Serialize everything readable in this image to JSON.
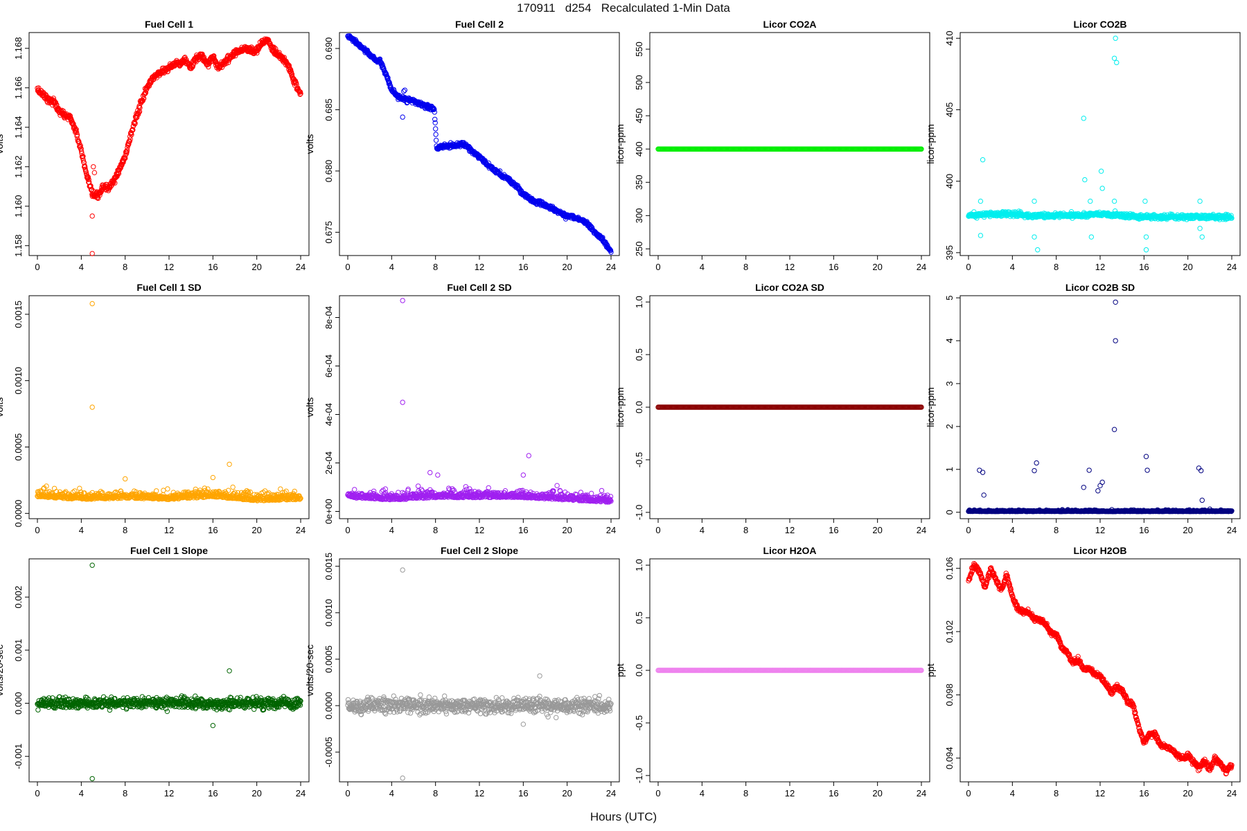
{
  "figure": {
    "title": "170911   d254   Recalculated 1-Min Data",
    "xlabel": "Hours (UTC)"
  },
  "chart_data": [
    {
      "type": "scatter",
      "title": "Fuel Cell 1",
      "ylabel": "volts",
      "color": "#ff0000",
      "xlim": [
        0,
        24
      ],
      "xticks": [
        "0",
        "4",
        "8",
        "12",
        "16",
        "20",
        "24"
      ],
      "ylim": [
        1.1575,
        1.1688
      ],
      "yticks": [
        {
          "v": 1.158,
          "label": "1.158"
        },
        {
          "v": 1.16,
          "label": "1.160"
        },
        {
          "v": 1.162,
          "label": "1.162"
        },
        {
          "v": 1.164,
          "label": "1.164"
        },
        {
          "v": 1.166,
          "label": "1.166"
        },
        {
          "v": 1.168,
          "label": "1.168"
        }
      ],
      "x": [
        0,
        0.5,
        1,
        1.5,
        2,
        2.5,
        3,
        3.5,
        4,
        4.5,
        5,
        5.5,
        6,
        6.5,
        7,
        7.5,
        8,
        8.5,
        9,
        9.5,
        10,
        10.5,
        11,
        11.5,
        12,
        12.5,
        13,
        13.5,
        14,
        14.5,
        15,
        15.5,
        16,
        16.5,
        17,
        17.5,
        18,
        18.5,
        19,
        19.5,
        20,
        20.5,
        21,
        21.5,
        22,
        22.5,
        23,
        23.5,
        24
      ],
      "y": [
        1.1659,
        1.1657,
        1.1654,
        1.1653,
        1.1648,
        1.1646,
        1.1645,
        1.1638,
        1.1628,
        1.1615,
        1.1606,
        1.1605,
        1.161,
        1.1609,
        1.1613,
        1.1619,
        1.1625,
        1.1636,
        1.1645,
        1.1653,
        1.166,
        1.1665,
        1.1667,
        1.1669,
        1.167,
        1.1672,
        1.1673,
        1.1674,
        1.167,
        1.1675,
        1.1676,
        1.1672,
        1.1676,
        1.167,
        1.1673,
        1.1675,
        1.1678,
        1.1679,
        1.168,
        1.1679,
        1.1679,
        1.1683,
        1.1684,
        1.1679,
        1.1676,
        1.1674,
        1.167,
        1.1662,
        1.1657
      ],
      "outliers": [
        {
          "x": 5,
          "y": 1.1576
        },
        {
          "x": 5,
          "y": 1.1595
        },
        {
          "x": 5.1,
          "y": 1.162
        },
        {
          "x": 5.2,
          "y": 1.1617
        }
      ]
    },
    {
      "type": "scatter",
      "title": "Fuel Cell 2",
      "ylabel": "volts",
      "color": "#0000ee",
      "xlim": [
        0,
        24
      ],
      "xticks": [
        "0",
        "4",
        "8",
        "12",
        "16",
        "20",
        "24"
      ],
      "ylim": [
        0.6731,
        0.6913
      ],
      "yticks": [
        {
          "v": 0.675,
          "label": "0.675"
        },
        {
          "v": 0.68,
          "label": "0.680"
        },
        {
          "v": 0.685,
          "label": "0.685"
        },
        {
          "v": 0.69,
          "label": "0.690"
        }
      ],
      "x": [
        0,
        0.5,
        1,
        1.5,
        2,
        2.5,
        3,
        3.5,
        4,
        4.5,
        5,
        5.5,
        6,
        6.5,
        7,
        7.5,
        7.9,
        8.1,
        8.5,
        9,
        9.5,
        10,
        10.5,
        11,
        11.5,
        12,
        12.5,
        13,
        13.5,
        14,
        14.5,
        15,
        15.5,
        16,
        16.5,
        17,
        17.5,
        18,
        18.5,
        19,
        19.5,
        20,
        20.5,
        21,
        21.5,
        22,
        22.5,
        23,
        23.5,
        24
      ],
      "y": [
        0.691,
        0.6907,
        0.6903,
        0.6899,
        0.6895,
        0.6891,
        0.6889,
        0.6878,
        0.6866,
        0.6861,
        0.6859,
        0.6858,
        0.6857,
        0.6855,
        0.6853,
        0.6852,
        0.685,
        0.6818,
        0.682,
        0.682,
        0.6821,
        0.6821,
        0.6822,
        0.6819,
        0.6815,
        0.6811,
        0.6807,
        0.6803,
        0.68,
        0.6796,
        0.6795,
        0.679,
        0.6787,
        0.6781,
        0.6778,
        0.6775,
        0.6774,
        0.6772,
        0.677,
        0.6768,
        0.6765,
        0.6763,
        0.6763,
        0.6761,
        0.6759,
        0.6756,
        0.675,
        0.6746,
        0.6741,
        0.6734
      ],
      "outliers": [
        {
          "x": 5.0,
          "y": 0.6844
        },
        {
          "x": 5.1,
          "y": 0.6865
        },
        {
          "x": 5.2,
          "y": 0.6866
        }
      ]
    },
    {
      "type": "scatter",
      "title": "Licor CO2A",
      "ylabel": "licor-ppm",
      "color": "#00ee00",
      "xlim": [
        0,
        24
      ],
      "xticks": [
        "0",
        "4",
        "8",
        "12",
        "16",
        "20",
        "24"
      ],
      "ylim": [
        240,
        575
      ],
      "yticks": [
        {
          "v": 250,
          "label": "250"
        },
        {
          "v": 300,
          "label": "300"
        },
        {
          "v": 350,
          "label": "350"
        },
        {
          "v": 400,
          "label": "400"
        },
        {
          "v": 450,
          "label": "450"
        },
        {
          "v": 500,
          "label": "500"
        },
        {
          "v": 550,
          "label": "550"
        }
      ],
      "x": [
        0,
        24
      ],
      "y": [
        400,
        400
      ],
      "outliers": []
    },
    {
      "type": "scatter",
      "title": "Licor CO2B",
      "ylabel": "licor-ppm",
      "color": "#00eeee",
      "xlim": [
        0,
        24
      ],
      "xticks": [
        "0",
        "4",
        "8",
        "12",
        "16",
        "20",
        "24"
      ],
      "ylim": [
        394.8,
        410.4
      ],
      "yticks": [
        {
          "v": 395,
          "label": "395"
        },
        {
          "v": 400,
          "label": "400"
        },
        {
          "v": 405,
          "label": "405"
        },
        {
          "v": 410,
          "label": "410"
        }
      ],
      "x": [
        0,
        2,
        4,
        6,
        8,
        10,
        12,
        14,
        16,
        18,
        20,
        22,
        24
      ],
      "y": [
        397.6,
        397.7,
        397.7,
        397.6,
        397.6,
        397.6,
        397.7,
        397.6,
        397.5,
        397.5,
        397.5,
        397.5,
        397.5
      ],
      "outliers": [
        {
          "x": 1.3,
          "y": 401.5
        },
        {
          "x": 1.1,
          "y": 398.6
        },
        {
          "x": 1.1,
          "y": 396.2
        },
        {
          "x": 6,
          "y": 398.6
        },
        {
          "x": 6,
          "y": 396.1
        },
        {
          "x": 6.3,
          "y": 395.2
        },
        {
          "x": 10.5,
          "y": 404.4
        },
        {
          "x": 10.6,
          "y": 400.1
        },
        {
          "x": 11.1,
          "y": 398.6
        },
        {
          "x": 11.2,
          "y": 396.1
        },
        {
          "x": 12.1,
          "y": 400.7
        },
        {
          "x": 12.2,
          "y": 399.5
        },
        {
          "x": 13.3,
          "y": 408.6
        },
        {
          "x": 13.4,
          "y": 410.0
        },
        {
          "x": 13.5,
          "y": 408.3
        },
        {
          "x": 13.3,
          "y": 398.6
        },
        {
          "x": 16.1,
          "y": 398.6
        },
        {
          "x": 16.2,
          "y": 396.1
        },
        {
          "x": 16.2,
          "y": 395.2
        },
        {
          "x": 21.1,
          "y": 398.6
        },
        {
          "x": 21.1,
          "y": 396.7
        },
        {
          "x": 21.3,
          "y": 396.1
        }
      ]
    },
    {
      "type": "scatter",
      "title": "Fuel Cell 1 SD",
      "ylabel": "volts",
      "color": "#ffa500",
      "xlim": [
        0,
        24
      ],
      "xticks": [
        "0",
        "4",
        "8",
        "12",
        "16",
        "20",
        "24"
      ],
      "ylim": [
        -4e-05,
        0.00164
      ],
      "yticks": [
        {
          "v": 0.0,
          "label": "0.0000"
        },
        {
          "v": 0.0005,
          "label": "0.0005"
        },
        {
          "v": 0.001,
          "label": "0.0010"
        },
        {
          "v": 0.0015,
          "label": "0.0015"
        }
      ],
      "x": [
        0,
        4,
        8,
        12,
        16,
        20,
        24
      ],
      "y": [
        0.00013,
        0.00011,
        0.00012,
        0.00011,
        0.00013,
        0.0001,
        0.00011
      ],
      "outliers": [
        {
          "x": 5,
          "y": 0.00158
        },
        {
          "x": 5,
          "y": 0.0008
        },
        {
          "x": 8,
          "y": 0.00026
        },
        {
          "x": 16,
          "y": 0.00027
        },
        {
          "x": 17.5,
          "y": 0.00037
        }
      ]
    },
    {
      "type": "scatter",
      "title": "Fuel Cell 2 SD",
      "ylabel": "volts",
      "color": "#a020f0",
      "xlim": [
        0,
        24
      ],
      "xticks": [
        "0",
        "4",
        "8",
        "12",
        "16",
        "20",
        "24"
      ],
      "ylim": [
        -3e-05,
        0.00089
      ],
      "yticks": [
        {
          "v": 0.0,
          "label": "0e+00"
        },
        {
          "v": 0.0002,
          "label": "2e-04"
        },
        {
          "v": 0.0004,
          "label": "4e-04"
        },
        {
          "v": 0.0006,
          "label": "6e-04"
        },
        {
          "v": 0.0008,
          "label": "8e-04"
        }
      ],
      "x": [
        0,
        4,
        8,
        12,
        16,
        20,
        24
      ],
      "y": [
        6e-05,
        5e-05,
        6e-05,
        6e-05,
        6e-05,
        5e-05,
        4e-05
      ],
      "outliers": [
        {
          "x": 5,
          "y": 0.00087
        },
        {
          "x": 5,
          "y": 0.00045
        },
        {
          "x": 7.5,
          "y": 0.00016
        },
        {
          "x": 8.2,
          "y": 0.00015
        },
        {
          "x": 16.5,
          "y": 0.00023
        },
        {
          "x": 16,
          "y": 0.00015
        }
      ]
    },
    {
      "type": "scatter",
      "title": "Licor CO2A SD",
      "ylabel": "licor-ppm",
      "color": "#8b0000",
      "xlim": [
        0,
        24
      ],
      "xticks": [
        "0",
        "4",
        "8",
        "12",
        "16",
        "20",
        "24"
      ],
      "ylim": [
        -1.06,
        1.06
      ],
      "yticks": [
        {
          "v": -1.0,
          "label": "-1.0"
        },
        {
          "v": -0.5,
          "label": "-0.5"
        },
        {
          "v": 0.0,
          "label": "0.0"
        },
        {
          "v": 0.5,
          "label": "0.5"
        },
        {
          "v": 1.0,
          "label": "1.0"
        }
      ],
      "x": [
        0,
        24
      ],
      "y": [
        0,
        0
      ],
      "outliers": []
    },
    {
      "type": "scatter",
      "title": "Licor CO2B SD",
      "ylabel": "licor-ppm",
      "color": "#000080",
      "xlim": [
        0,
        24
      ],
      "xticks": [
        "0",
        "4",
        "8",
        "12",
        "16",
        "20",
        "24"
      ],
      "ylim": [
        -0.15,
        5.05
      ],
      "yticks": [
        {
          "v": 0,
          "label": "0"
        },
        {
          "v": 1,
          "label": "1"
        },
        {
          "v": 2,
          "label": "2"
        },
        {
          "v": 3,
          "label": "3"
        },
        {
          "v": 4,
          "label": "4"
        },
        {
          "v": 5,
          "label": "5"
        }
      ],
      "x": [
        0,
        24
      ],
      "y": [
        0.02,
        0.02
      ],
      "outliers": [
        {
          "x": 13.4,
          "y": 4.9
        },
        {
          "x": 13.4,
          "y": 4.0
        },
        {
          "x": 13.3,
          "y": 1.93
        },
        {
          "x": 16.2,
          "y": 1.3
        },
        {
          "x": 6.2,
          "y": 1.15
        },
        {
          "x": 1,
          "y": 0.98
        },
        {
          "x": 1.3,
          "y": 0.93
        },
        {
          "x": 6,
          "y": 0.97
        },
        {
          "x": 11,
          "y": 0.98
        },
        {
          "x": 21,
          "y": 1.03
        },
        {
          "x": 21.2,
          "y": 0.97
        },
        {
          "x": 10.5,
          "y": 0.58
        },
        {
          "x": 12,
          "y": 0.62
        },
        {
          "x": 12.2,
          "y": 0.7
        },
        {
          "x": 11.8,
          "y": 0.5
        },
        {
          "x": 1.4,
          "y": 0.4
        },
        {
          "x": 16.3,
          "y": 0.98
        },
        {
          "x": 21.3,
          "y": 0.28
        }
      ]
    },
    {
      "type": "scatter",
      "title": "Fuel Cell 1 Slope",
      "ylabel": "volts/20-sec",
      "color": "#006400",
      "xlim": [
        0,
        24
      ],
      "xticks": [
        "0",
        "4",
        "8",
        "12",
        "16",
        "20",
        "24"
      ],
      "ylim": [
        -0.00148,
        0.00272
      ],
      "yticks": [
        {
          "v": -0.001,
          "label": "-0.001"
        },
        {
          "v": 0.0,
          "label": "0.000"
        },
        {
          "v": 0.001,
          "label": "0.001"
        },
        {
          "v": 0.002,
          "label": "0.002"
        }
      ],
      "x": [
        0,
        24
      ],
      "y": [
        0,
        0
      ],
      "outliers": [
        {
          "x": 5,
          "y": 0.0026
        },
        {
          "x": 5,
          "y": -0.00142
        },
        {
          "x": 17.5,
          "y": 0.00061
        },
        {
          "x": 16,
          "y": -0.00042
        }
      ]
    },
    {
      "type": "scatter",
      "title": "Fuel Cell 2 Slope",
      "ylabel": "volts/20-sec",
      "color": "#999999",
      "xlim": [
        0,
        24
      ],
      "xticks": [
        "0",
        "4",
        "8",
        "12",
        "16",
        "20",
        "24"
      ],
      "ylim": [
        -0.00082,
        0.00158
      ],
      "yticks": [
        {
          "v": -0.0005,
          "label": "-0.0005"
        },
        {
          "v": 0.0,
          "label": "0.0000"
        },
        {
          "v": 0.0005,
          "label": "0.0005"
        },
        {
          "v": 0.001,
          "label": "0.0010"
        },
        {
          "v": 0.0015,
          "label": "0.0015"
        }
      ],
      "x": [
        0,
        24
      ],
      "y": [
        0,
        0
      ],
      "outliers": [
        {
          "x": 5,
          "y": 0.00146
        },
        {
          "x": 5,
          "y": -0.00078
        },
        {
          "x": 17.5,
          "y": 0.00032
        },
        {
          "x": 16,
          "y": -0.0002
        }
      ]
    },
    {
      "type": "scatter",
      "title": "Licor H2OA",
      "ylabel": "ppt",
      "color": "#ee82ee",
      "xlim": [
        0,
        24
      ],
      "xticks": [
        "0",
        "4",
        "8",
        "12",
        "16",
        "20",
        "24"
      ],
      "ylim": [
        -1.06,
        1.06
      ],
      "yticks": [
        {
          "v": -1.0,
          "label": "-1.0"
        },
        {
          "v": -0.5,
          "label": "-0.5"
        },
        {
          "v": 0.0,
          "label": "0.0"
        },
        {
          "v": 0.5,
          "label": "0.5"
        },
        {
          "v": 1.0,
          "label": "1.0"
        }
      ],
      "x": [
        0,
        24
      ],
      "y": [
        0,
        0
      ],
      "outliers": []
    },
    {
      "type": "scatter",
      "title": "Licor H2OB",
      "ylabel": "ppt",
      "color": "#ff0000",
      "xlim": [
        0,
        24
      ],
      "xticks": [
        "0",
        "4",
        "8",
        "12",
        "16",
        "20",
        "24"
      ],
      "ylim": [
        0.0925,
        0.1066
      ],
      "yticks": [
        {
          "v": 0.094,
          "label": "0.094"
        },
        {
          "v": 0.098,
          "label": "0.098"
        },
        {
          "v": 0.102,
          "label": "0.102"
        },
        {
          "v": 0.106,
          "label": "0.106"
        }
      ],
      "x": [
        0,
        0.5,
        1,
        1.5,
        2,
        2.5,
        3,
        3.5,
        4,
        4.5,
        5,
        5.5,
        6,
        6.5,
        7,
        7.5,
        8,
        8.5,
        9,
        9.5,
        10,
        10.5,
        11,
        11.5,
        12,
        12.5,
        13,
        13.5,
        14,
        14.5,
        15,
        15.5,
        16,
        16.5,
        17,
        17.5,
        18,
        18.5,
        19,
        19.5,
        20,
        20.5,
        21,
        21.5,
        22,
        22.5,
        23,
        23.5,
        24
      ],
      "y": [
        0.1052,
        0.1062,
        0.1058,
        0.1048,
        0.106,
        0.1053,
        0.1046,
        0.1056,
        0.1042,
        0.1034,
        0.1033,
        0.1032,
        0.1028,
        0.1028,
        0.1025,
        0.1019,
        0.1018,
        0.101,
        0.1007,
        0.1,
        0.1002,
        0.0996,
        0.0997,
        0.0993,
        0.0992,
        0.0987,
        0.0982,
        0.0985,
        0.0983,
        0.0976,
        0.0974,
        0.096,
        0.095,
        0.0955,
        0.0956,
        0.0948,
        0.0947,
        0.0946,
        0.0942,
        0.094,
        0.0942,
        0.0938,
        0.0934,
        0.0938,
        0.0933,
        0.094,
        0.0936,
        0.0932,
        0.0935
      ],
      "outliers": []
    }
  ]
}
